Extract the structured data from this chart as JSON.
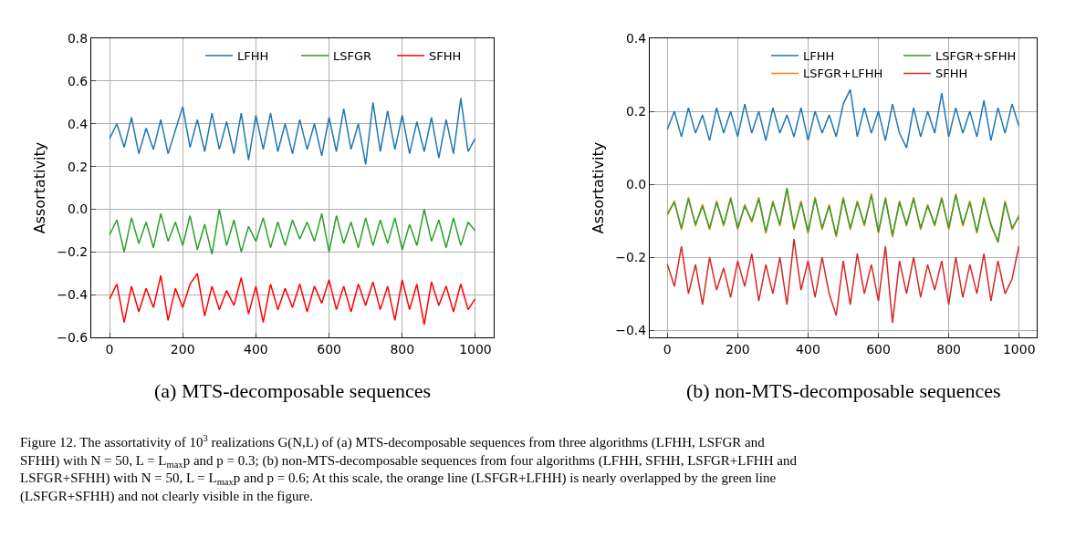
{
  "chart_data": [
    {
      "type": "line",
      "xlabel": "(a) MTS-decomposable sequences",
      "ylabel": "Assortativity",
      "xlim": [
        -50,
        1050
      ],
      "ylim": [
        -0.6,
        0.8
      ],
      "xticks": [
        0,
        200,
        400,
        600,
        800,
        1000
      ],
      "yticks": [
        {
          "value": -0.6,
          "label": "−0.6"
        },
        {
          "value": -0.4,
          "label": "−0.4"
        },
        {
          "value": -0.2,
          "label": "−0.2"
        },
        {
          "value": 0,
          "label": "0.0"
        },
        {
          "value": 0.2,
          "label": "0.2"
        },
        {
          "value": 0.4,
          "label": "0.4"
        },
        {
          "value": 0.6,
          "label": "0.6"
        },
        {
          "value": 0.8,
          "label": "0.8"
        }
      ],
      "grid": true,
      "legend": "top right",
      "marker": "none",
      "line_style": "solid",
      "x": [
        0,
        20,
        40,
        60,
        80,
        100,
        120,
        140,
        160,
        180,
        200,
        220,
        240,
        260,
        280,
        300,
        320,
        340,
        360,
        380,
        400,
        420,
        440,
        460,
        480,
        500,
        520,
        540,
        560,
        580,
        600,
        620,
        640,
        660,
        680,
        700,
        720,
        740,
        760,
        780,
        800,
        820,
        840,
        860,
        880,
        900,
        920,
        940,
        960,
        980,
        999
      ],
      "series": [
        {
          "name": "LFHH",
          "color": "#1f77b4",
          "values": [
            0.33,
            0.4,
            0.29,
            0.43,
            0.26,
            0.38,
            0.28,
            0.42,
            0.26,
            0.37,
            0.48,
            0.29,
            0.42,
            0.27,
            0.45,
            0.28,
            0.41,
            0.26,
            0.45,
            0.23,
            0.44,
            0.28,
            0.45,
            0.27,
            0.4,
            0.26,
            0.42,
            0.28,
            0.4,
            0.25,
            0.43,
            0.27,
            0.47,
            0.28,
            0.4,
            0.21,
            0.5,
            0.27,
            0.46,
            0.28,
            0.44,
            0.26,
            0.41,
            0.27,
            0.43,
            0.24,
            0.42,
            0.26,
            0.52,
            0.27,
            0.33
          ]
        },
        {
          "name": "LSFGR",
          "color": "#2ca02c",
          "values": [
            -0.12,
            -0.05,
            -0.2,
            -0.04,
            -0.16,
            -0.06,
            -0.18,
            -0.02,
            -0.15,
            -0.06,
            -0.17,
            -0.03,
            -0.19,
            -0.07,
            -0.21,
            0.0,
            -0.17,
            -0.05,
            -0.2,
            -0.08,
            -0.15,
            -0.04,
            -0.18,
            -0.06,
            -0.17,
            -0.05,
            -0.14,
            -0.06,
            -0.15,
            -0.02,
            -0.2,
            -0.03,
            -0.16,
            -0.06,
            -0.18,
            -0.04,
            -0.17,
            -0.05,
            -0.16,
            -0.04,
            -0.19,
            -0.07,
            -0.17,
            0.0,
            -0.15,
            -0.05,
            -0.18,
            -0.04,
            -0.17,
            -0.06,
            -0.1
          ]
        },
        {
          "name": "SFHH",
          "color": "#ff0000",
          "values": [
            -0.42,
            -0.35,
            -0.53,
            -0.36,
            -0.48,
            -0.37,
            -0.46,
            -0.31,
            -0.52,
            -0.37,
            -0.46,
            -0.35,
            -0.3,
            -0.5,
            -0.36,
            -0.47,
            -0.38,
            -0.45,
            -0.32,
            -0.49,
            -0.36,
            -0.53,
            -0.35,
            -0.47,
            -0.37,
            -0.46,
            -0.35,
            -0.48,
            -0.36,
            -0.44,
            -0.33,
            -0.47,
            -0.36,
            -0.48,
            -0.35,
            -0.45,
            -0.34,
            -0.47,
            -0.36,
            -0.52,
            -0.33,
            -0.47,
            -0.35,
            -0.54,
            -0.34,
            -0.45,
            -0.36,
            -0.48,
            -0.35,
            -0.47,
            -0.42
          ]
        }
      ],
      "annotations": [
        "Figure 12. The assortativity of 10$^{3}$ realizations G(N,L) of (a) MTS-decomposable sequences from three algorithms (LFHH, LSFGR and SFHH) with N = 50, L = L$_{max}$p and p = 0.3; (b) non-MTS-decomposable sequences from four algorithms (LFHH, SFHH, LSFGR+LFHH and LSFGR+SFHH) with N = 50, L = L$_{max}$p and p = 0.6; At this scale, the orange line (LSFGR+LFHH) is nearly overlapped by the green line (LSFGR+SFHH) and not clearly visible in the figure."
      ]
    },
    {
      "type": "line",
      "xlabel": "(b) non-MTS-decomposable sequences",
      "ylabel": "Assortativity",
      "xlim": [
        -50,
        1050
      ],
      "ylim": [
        -0.42,
        0.4
      ],
      "xticks": [
        0,
        200,
        400,
        600,
        800,
        1000
      ],
      "yticks": [
        {
          "value": -0.4,
          "label": "−0.4"
        },
        {
          "value": -0.2,
          "label": "−0.2"
        },
        {
          "value": 0,
          "label": "0.0"
        },
        {
          "value": 0.2,
          "label": "0.2"
        },
        {
          "value": 0.4,
          "label": "0.4"
        }
      ],
      "grid": true,
      "legend": "top right",
      "marker": "none",
      "line_style": "solid",
      "x": [
        0,
        20,
        40,
        60,
        80,
        100,
        120,
        140,
        160,
        180,
        200,
        220,
        240,
        260,
        280,
        300,
        320,
        340,
        360,
        380,
        400,
        420,
        440,
        460,
        480,
        500,
        520,
        540,
        560,
        580,
        600,
        620,
        640,
        660,
        680,
        700,
        720,
        740,
        760,
        780,
        800,
        820,
        840,
        860,
        880,
        900,
        920,
        940,
        960,
        980,
        999
      ],
      "series": [
        {
          "name": "LFHH",
          "color": "#1f77b4",
          "values": [
            0.15,
            0.2,
            0.13,
            0.21,
            0.14,
            0.19,
            0.12,
            0.21,
            0.14,
            0.2,
            0.13,
            0.22,
            0.14,
            0.2,
            0.12,
            0.21,
            0.14,
            0.19,
            0.13,
            0.21,
            0.12,
            0.2,
            0.14,
            0.19,
            0.13,
            0.22,
            0.26,
            0.13,
            0.21,
            0.14,
            0.2,
            0.12,
            0.22,
            0.14,
            0.1,
            0.21,
            0.13,
            0.2,
            0.14,
            0.25,
            0.13,
            0.21,
            0.14,
            0.2,
            0.13,
            0.23,
            0.12,
            0.21,
            0.14,
            0.22,
            0.16
          ]
        },
        {
          "name": "LSFGR+LFHH",
          "color": "#ff7f0e",
          "values": [
            -0.085,
            -0.045,
            -0.125,
            -0.035,
            -0.115,
            -0.055,
            -0.125,
            -0.045,
            -0.115,
            -0.035,
            -0.125,
            -0.055,
            -0.105,
            -0.035,
            -0.135,
            -0.045,
            -0.115,
            -0.015,
            -0.125,
            -0.045,
            -0.135,
            -0.035,
            -0.125,
            -0.055,
            -0.145,
            -0.035,
            -0.125,
            -0.045,
            -0.115,
            -0.025,
            -0.135,
            -0.035,
            -0.145,
            -0.045,
            -0.115,
            -0.035,
            -0.125,
            -0.055,
            -0.115,
            -0.035,
            -0.125,
            -0.025,
            -0.115,
            -0.045,
            -0.135,
            -0.035,
            -0.115,
            -0.155,
            -0.045,
            -0.125,
            -0.085
          ]
        },
        {
          "name": "LSFGR+SFHH",
          "color": "#2ca02c",
          "values": [
            -0.08,
            -0.05,
            -0.12,
            -0.04,
            -0.11,
            -0.06,
            -0.12,
            -0.05,
            -0.11,
            -0.04,
            -0.12,
            -0.06,
            -0.1,
            -0.04,
            -0.13,
            -0.05,
            -0.11,
            -0.01,
            -0.12,
            -0.05,
            -0.13,
            -0.04,
            -0.12,
            -0.06,
            -0.14,
            -0.04,
            -0.12,
            -0.05,
            -0.11,
            -0.03,
            -0.13,
            -0.04,
            -0.14,
            -0.05,
            -0.11,
            -0.04,
            -0.12,
            -0.06,
            -0.11,
            -0.04,
            -0.12,
            -0.03,
            -0.11,
            -0.05,
            -0.13,
            -0.04,
            -0.11,
            -0.16,
            -0.05,
            -0.12,
            -0.09
          ]
        },
        {
          "name": "SFHH",
          "color": "#d62728",
          "values": [
            -0.22,
            -0.28,
            -0.17,
            -0.3,
            -0.22,
            -0.33,
            -0.2,
            -0.29,
            -0.23,
            -0.31,
            -0.21,
            -0.28,
            -0.19,
            -0.32,
            -0.22,
            -0.3,
            -0.2,
            -0.33,
            -0.15,
            -0.29,
            -0.21,
            -0.31,
            -0.2,
            -0.3,
            -0.36,
            -0.21,
            -0.33,
            -0.19,
            -0.3,
            -0.22,
            -0.32,
            -0.17,
            -0.38,
            -0.21,
            -0.3,
            -0.2,
            -0.31,
            -0.22,
            -0.29,
            -0.21,
            -0.33,
            -0.2,
            -0.31,
            -0.22,
            -0.3,
            -0.19,
            -0.32,
            -0.21,
            -0.3,
            -0.26,
            -0.17
          ]
        }
      ]
    }
  ]
}
